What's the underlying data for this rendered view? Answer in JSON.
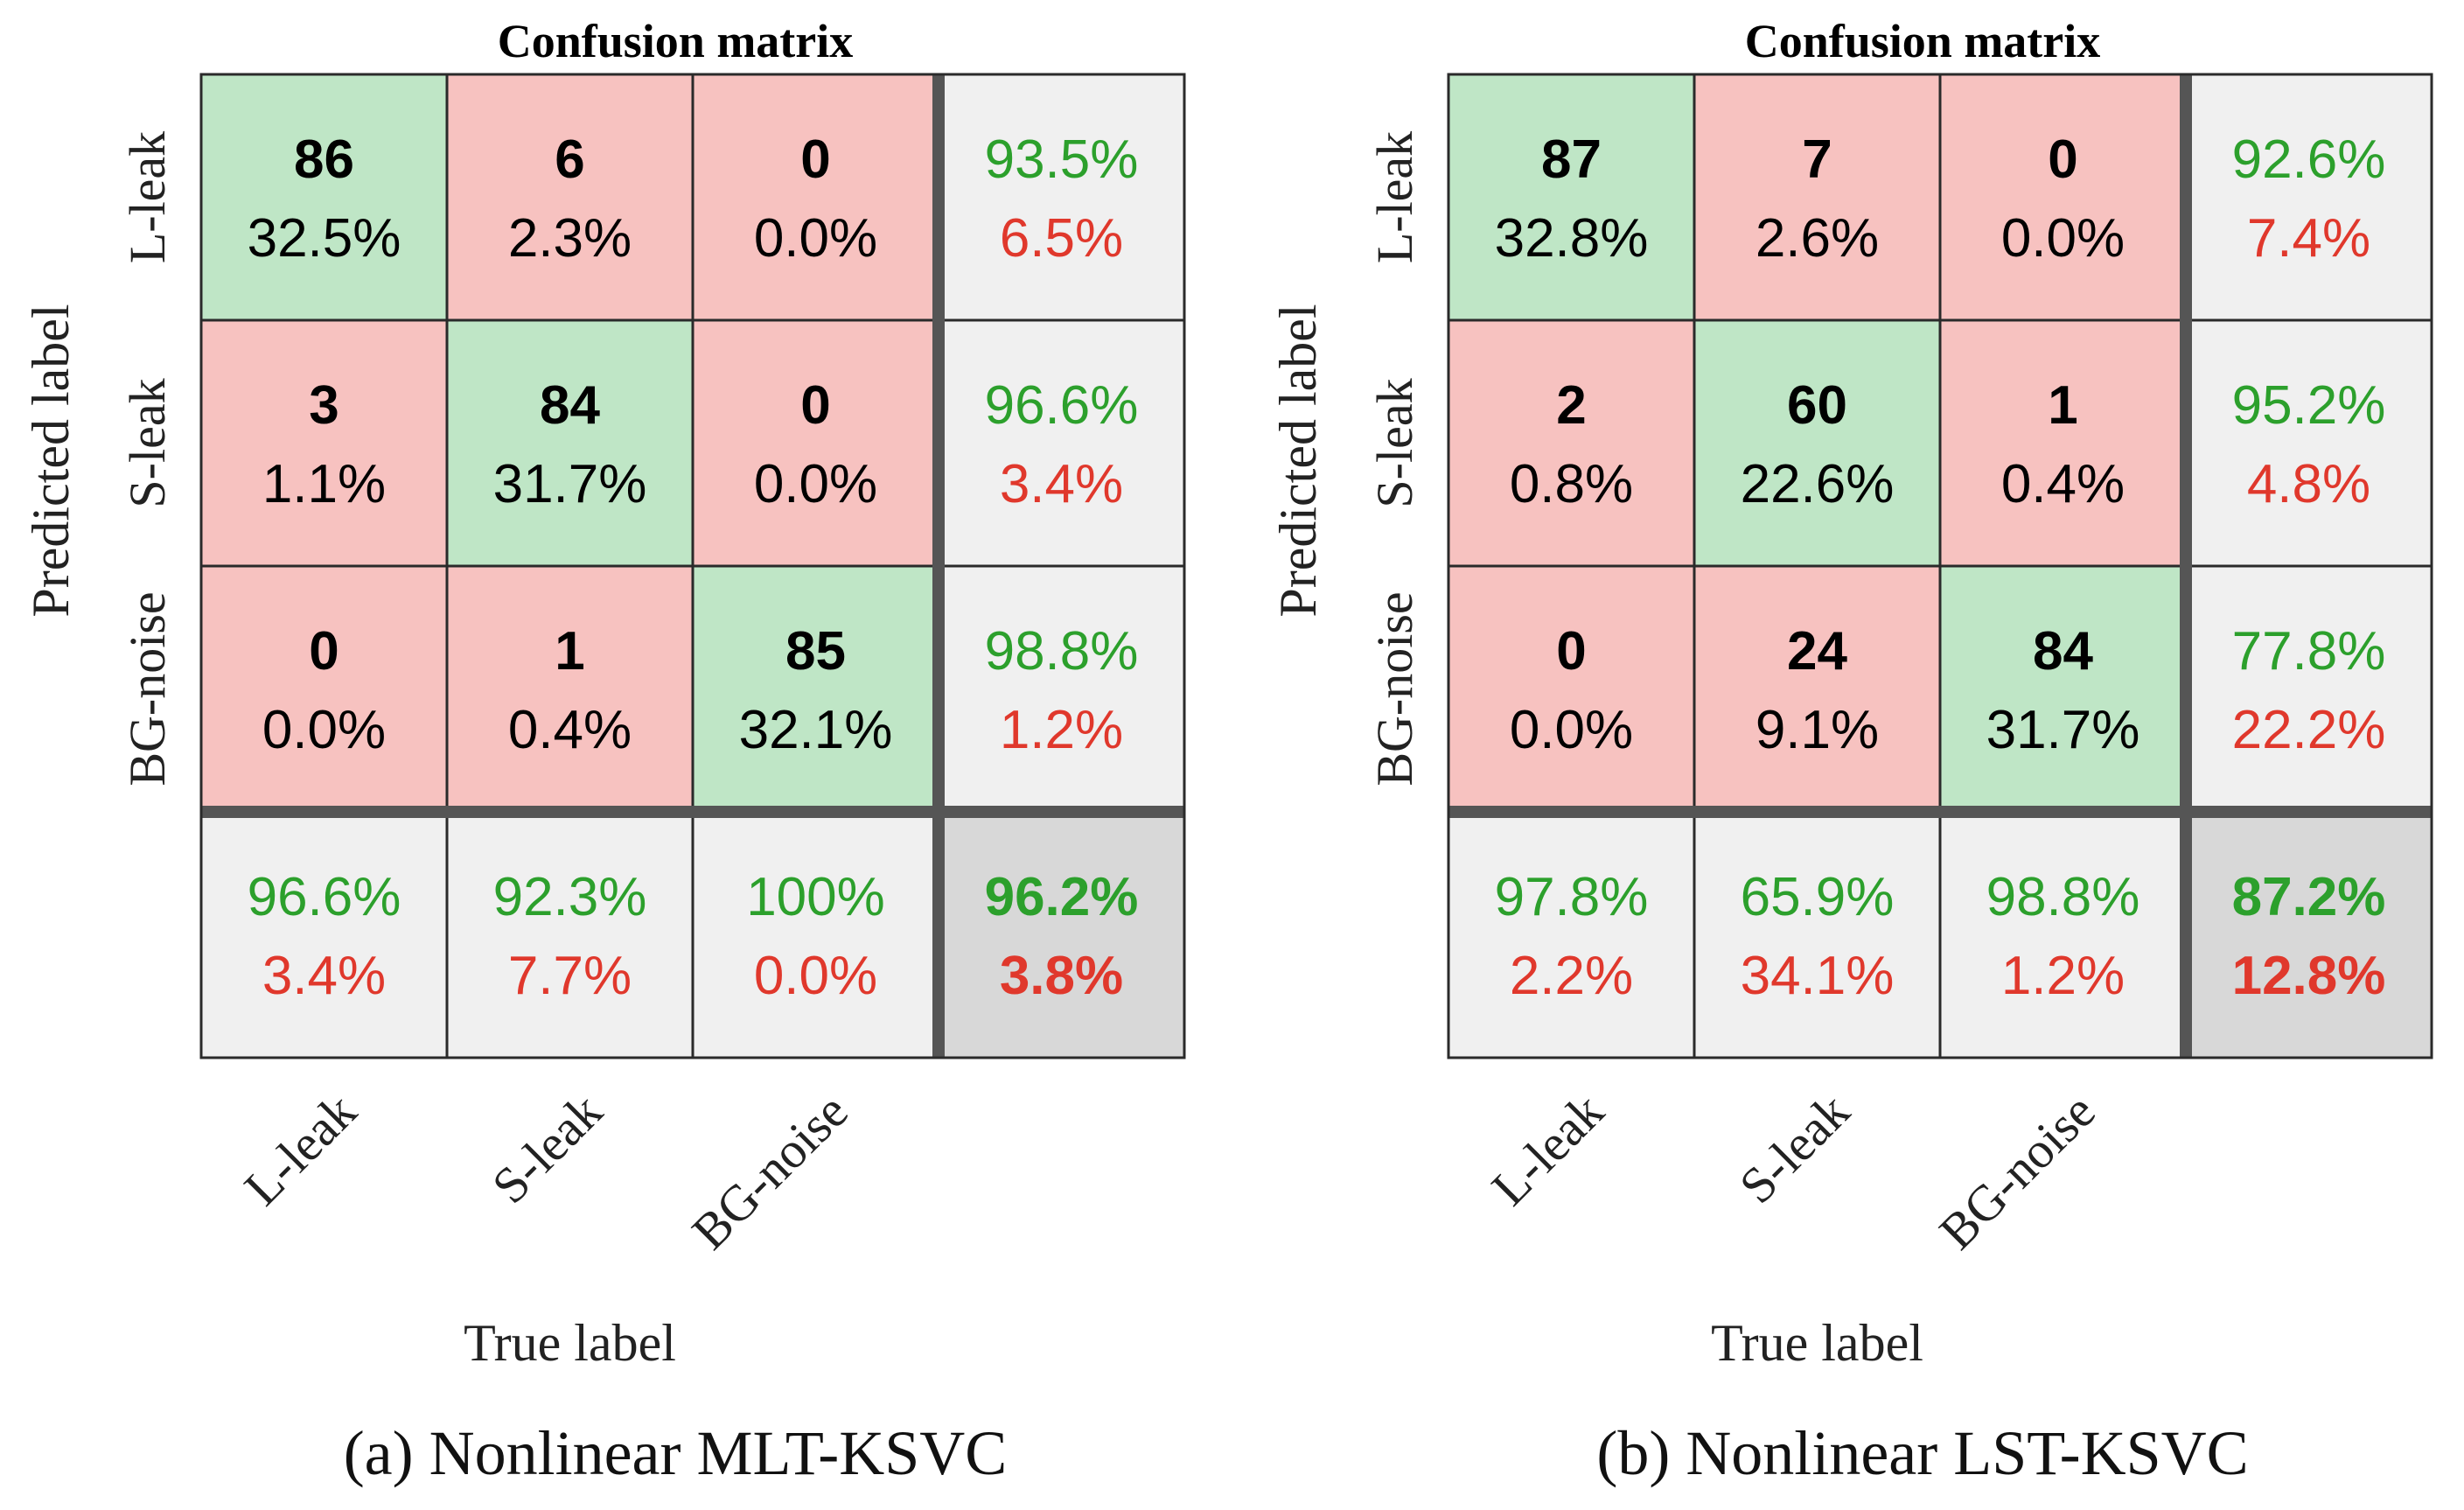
{
  "colors": {
    "correct_cell": "#bfe6c6",
    "wrong_cell": "#f7c2c0",
    "summary_cell": "#f0f0f0",
    "total_cell": "#d8d8d8",
    "good_text": "#2ca02c",
    "bad_text": "#e0382c"
  },
  "panels": [
    {
      "title": "Confusion matrix",
      "caption": "(a)  Nonlinear MLT-KSVC",
      "xlabel": "True label",
      "ylabel": "Predicted label",
      "class_labels": [
        "L-leak",
        "S-leak",
        "BG-noise"
      ],
      "chart_data": {
        "type": "heatmap",
        "categories": [
          "L-leak",
          "S-leak",
          "BG-noise"
        ],
        "counts": [
          [
            86,
            6,
            0
          ],
          [
            3,
            84,
            0
          ],
          [
            0,
            1,
            85
          ]
        ],
        "percents": [
          [
            "32.5%",
            "2.3%",
            "0.0%"
          ],
          [
            "1.1%",
            "31.7%",
            "0.0%"
          ],
          [
            "0.0%",
            "0.4%",
            "32.1%"
          ]
        ],
        "row_summary": [
          [
            "93.5%",
            "6.5%"
          ],
          [
            "96.6%",
            "3.4%"
          ],
          [
            "98.8%",
            "1.2%"
          ]
        ],
        "col_summary": [
          [
            "96.6%",
            "3.4%"
          ],
          [
            "92.3%",
            "7.7%"
          ],
          [
            "100%",
            "0.0%"
          ]
        ],
        "total": [
          "96.2%",
          "3.8%"
        ]
      }
    },
    {
      "title": "Confusion matrix",
      "caption": "(b)  Nonlinear LST-KSVC",
      "xlabel": "True label",
      "ylabel": "Predicted label",
      "class_labels": [
        "L-leak",
        "S-leak",
        "BG-noise"
      ],
      "chart_data": {
        "type": "heatmap",
        "categories": [
          "L-leak",
          "S-leak",
          "BG-noise"
        ],
        "counts": [
          [
            87,
            7,
            0
          ],
          [
            2,
            60,
            1
          ],
          [
            0,
            24,
            84
          ]
        ],
        "percents": [
          [
            "32.8%",
            "2.6%",
            "0.0%"
          ],
          [
            "0.8%",
            "22.6%",
            "0.4%"
          ],
          [
            "0.0%",
            "9.1%",
            "31.7%"
          ]
        ],
        "row_summary": [
          [
            "92.6%",
            "7.4%"
          ],
          [
            "95.2%",
            "4.8%"
          ],
          [
            "77.8%",
            "22.2%"
          ]
        ],
        "col_summary": [
          [
            "97.8%",
            "2.2%"
          ],
          [
            "65.9%",
            "34.1%"
          ],
          [
            "98.8%",
            "1.2%"
          ]
        ],
        "total": [
          "87.2%",
          "12.8%"
        ]
      }
    }
  ]
}
